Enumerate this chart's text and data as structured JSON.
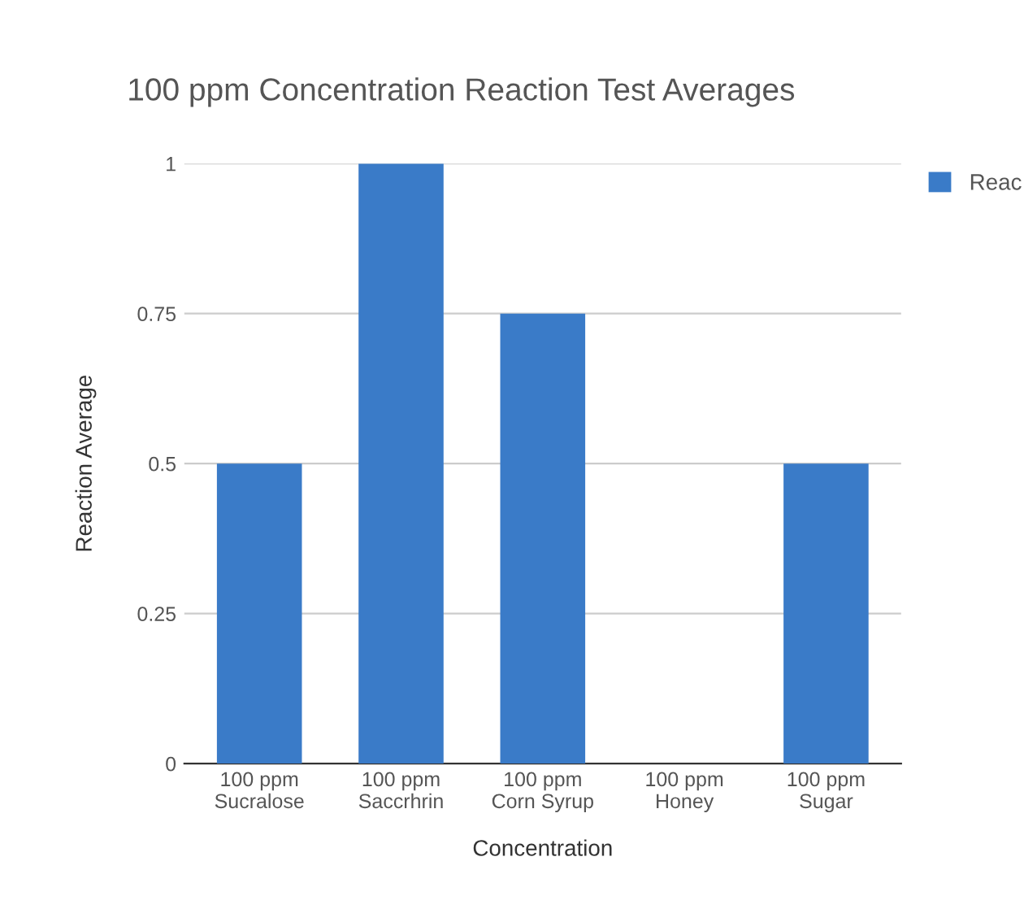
{
  "chart_data": {
    "type": "bar",
    "title": "100 ppm Concentration Reaction Test Averages",
    "xlabel": "Concentration",
    "ylabel": "Reaction Average",
    "categories": [
      "100 ppm\nSucralose",
      "100 ppm\nSaccrhrin",
      "100 ppm\nCorn Syrup",
      "100 ppm\nHoney",
      "100 ppm\nSugar"
    ],
    "series": [
      {
        "name": "Reac",
        "color": "#3a7bc8",
        "values": [
          0.5,
          1,
          0.75,
          0,
          0.5
        ]
      }
    ],
    "ylim": [
      0,
      1
    ],
    "yticks": [
      0,
      0.25,
      0.5,
      0.75,
      1
    ],
    "grid": "y",
    "legend": "right"
  }
}
